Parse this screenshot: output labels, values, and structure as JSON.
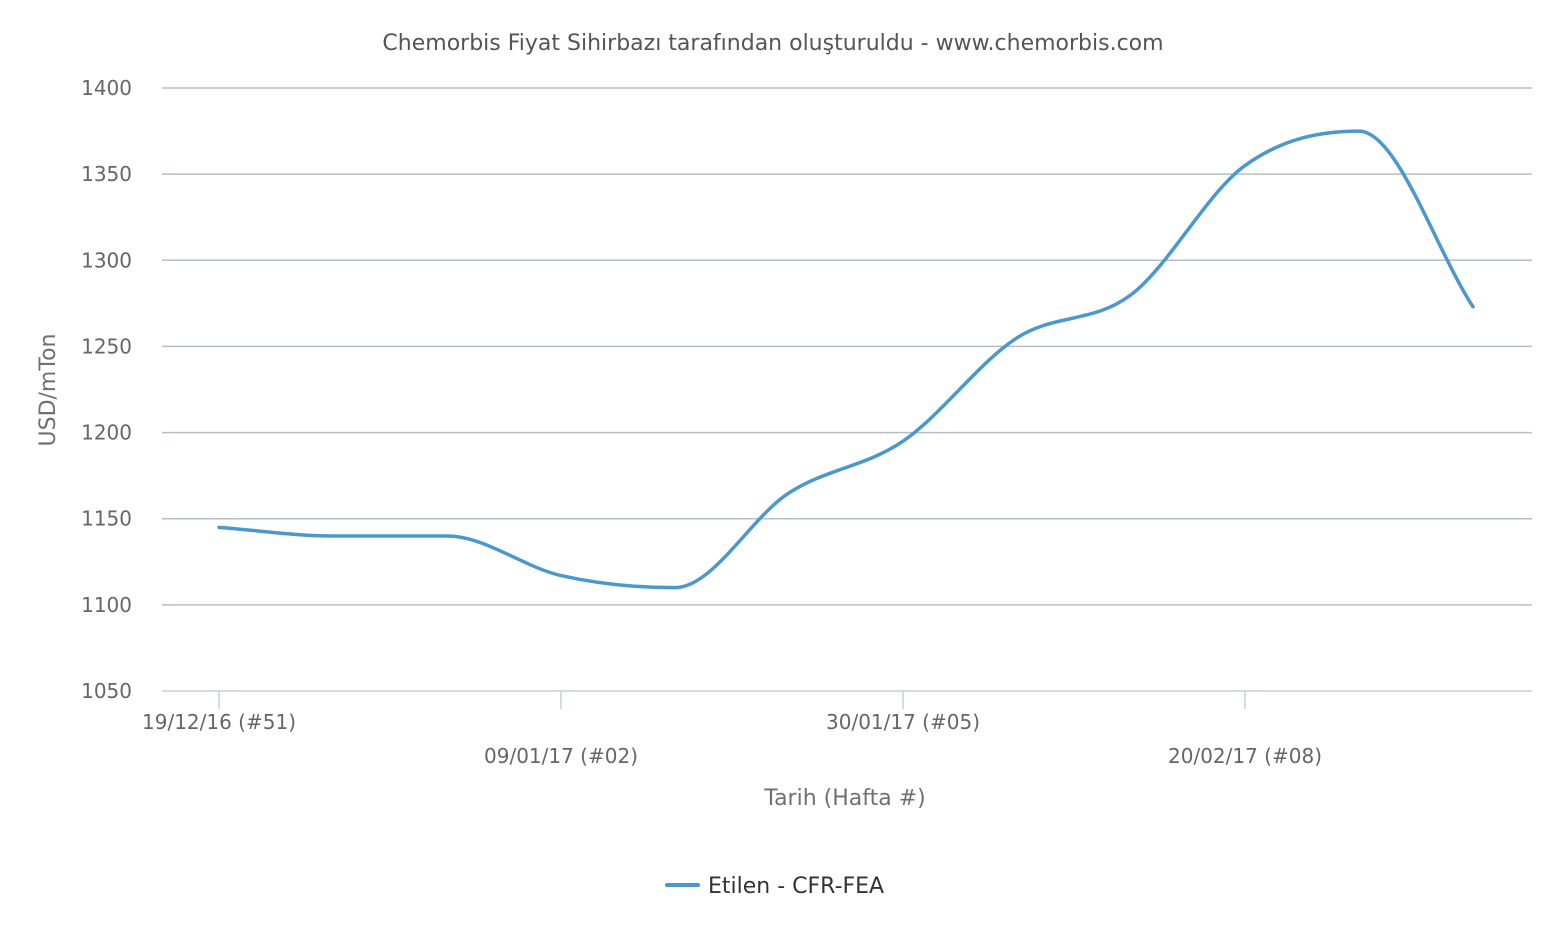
{
  "chart_data": {
    "type": "line",
    "title": "Chemorbis Fiyat Sihirbazı tarafından oluşturuldu - www.chemorbis.com",
    "xlabel": "Tarih (Hafta #)",
    "ylabel": "USD/mTon",
    "ylim": [
      1050,
      1400
    ],
    "yticks": [
      "1050",
      "1100",
      "1150",
      "1200",
      "1250",
      "1300",
      "1350",
      "1400"
    ],
    "xtick_labels": [
      "19/12/16 (#51)",
      "09/01/17 (#02)",
      "30/01/17 (#05)",
      "20/02/17 (#08)"
    ],
    "x": [
      "19/12/16",
      "26/12/16",
      "02/01/17",
      "09/01/17",
      "16/01/17",
      "23/01/17",
      "30/01/17",
      "06/02/17",
      "13/02/17",
      "20/02/17",
      "27/02/17",
      "06/03/17"
    ],
    "grid": true,
    "legend_position": "bottom-center",
    "colors": {
      "series": "#4a98cc",
      "grid": "#b8bec4",
      "axis": "#c0d0e0"
    },
    "series": [
      {
        "name": "Etilen - CFR-FEA",
        "values": [
          1145,
          1140,
          1140,
          1117,
          1110,
          1165,
          1195,
          1255,
          1280,
          1355,
          1375,
          1273
        ]
      }
    ]
  }
}
